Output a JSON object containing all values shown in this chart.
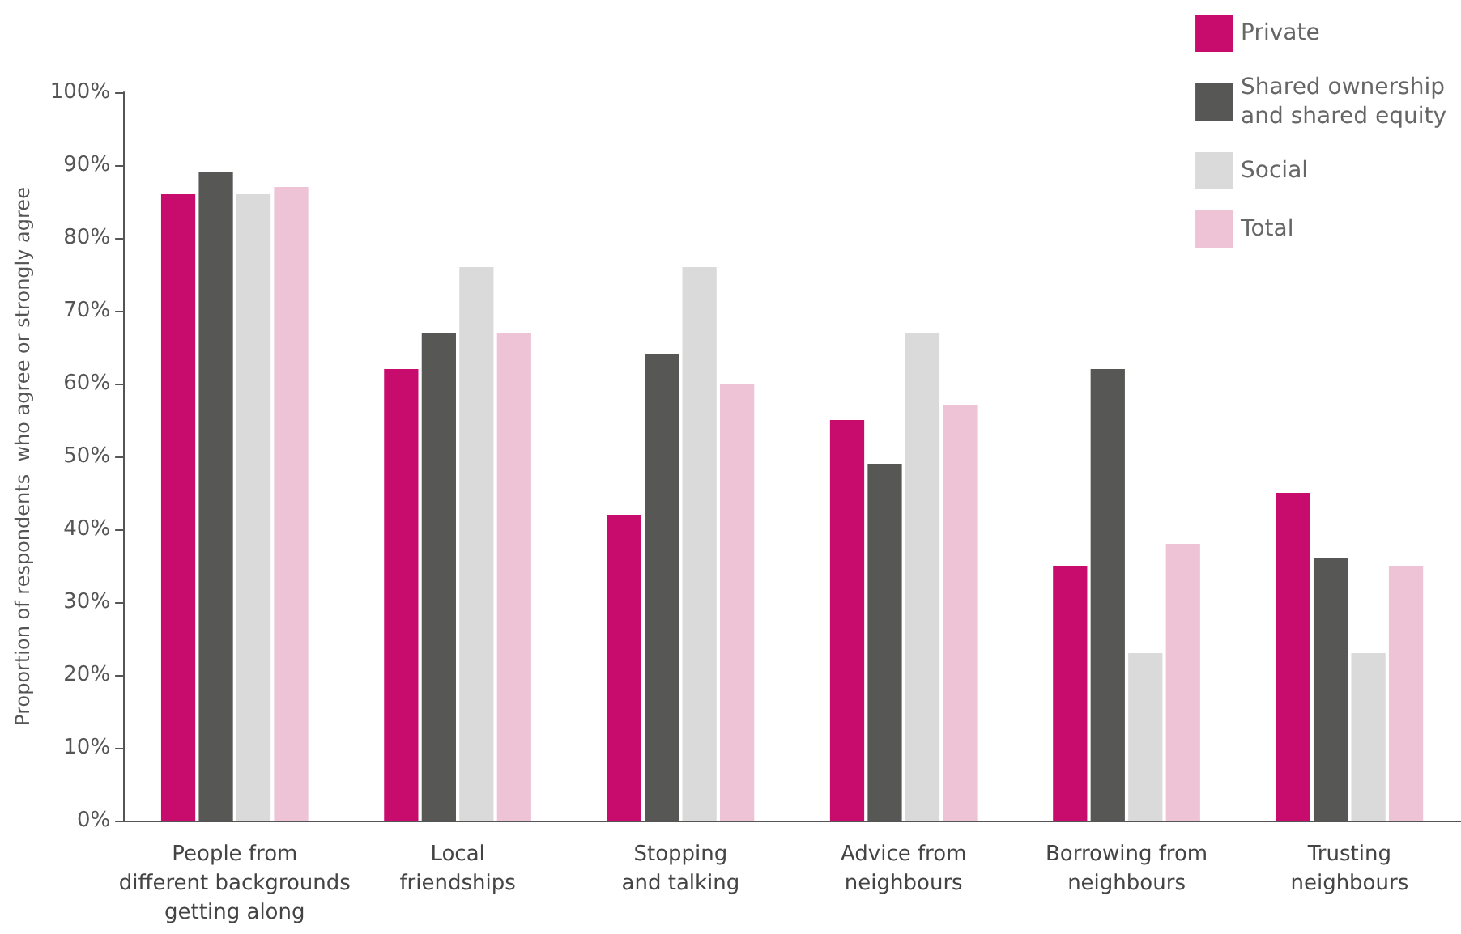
{
  "chart_data": {
    "type": "bar",
    "ylabel": "Proportion of respondents  who agree or strongly agree",
    "categories": [
      "People from\ndifferent backgrounds\ngetting along",
      "Local\nfriendships",
      "Stopping\nand talking",
      "Advice from\nneighbours",
      "Borrowing from\nneighbours",
      "Trusting\nneighbours"
    ],
    "series": [
      {
        "name": "Private",
        "color": "#c80c6e",
        "values": [
          86,
          62,
          42,
          55,
          35,
          45
        ]
      },
      {
        "name": "Shared ownership\nand shared equity",
        "color": "#575756",
        "values": [
          89,
          67,
          64,
          49,
          62,
          36
        ]
      },
      {
        "name": "Social",
        "color": "#dadada",
        "values": [
          86,
          76,
          76,
          67,
          23,
          23
        ]
      },
      {
        "name": "Total",
        "color": "#edc3d5",
        "values": [
          87,
          67,
          60,
          57,
          38,
          35
        ]
      }
    ],
    "ylim": [
      0,
      100
    ],
    "yticks": [
      {
        "value": 0,
        "label": "0%"
      },
      {
        "value": 10,
        "label": "10%"
      },
      {
        "value": 20,
        "label": "20%"
      },
      {
        "value": 30,
        "label": "30%"
      },
      {
        "value": 40,
        "label": "40%"
      },
      {
        "value": 50,
        "label": "50%"
      },
      {
        "value": 60,
        "label": "60%"
      },
      {
        "value": 70,
        "label": "70%"
      },
      {
        "value": 80,
        "label": "80%"
      },
      {
        "value": 90,
        "label": "90%"
      },
      {
        "value": 100,
        "label": "100%"
      }
    ],
    "grid": false,
    "legend": "top right"
  }
}
